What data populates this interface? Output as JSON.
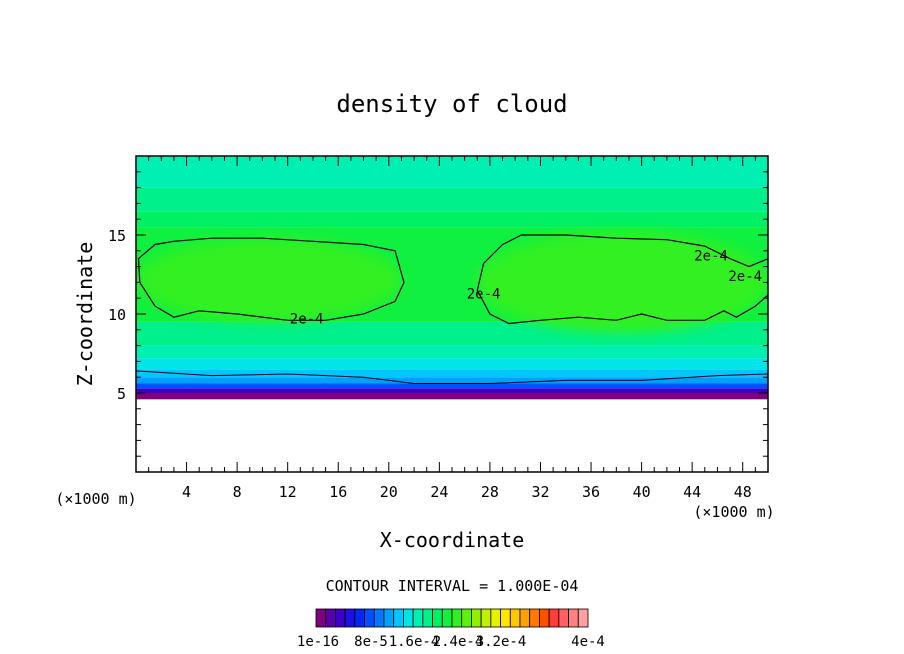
{
  "chart_data": {
    "type": "heatmap",
    "title": "density of cloud",
    "xlabel": "X-coordinate",
    "ylabel": "Z-coordinate",
    "x_unit": "(×1000 m)",
    "z_unit": "(×1000 m)",
    "xlim": [
      0,
      50
    ],
    "ylim": [
      0,
      20
    ],
    "x_ticks": [
      4,
      8,
      12,
      16,
      20,
      24,
      28,
      32,
      36,
      40,
      44,
      48
    ],
    "y_ticks": [
      5,
      10,
      15
    ],
    "contour_interval_text": "CONTOUR INTERVAL = 1.000E-04",
    "contour_label": "2e-4",
    "contour_level": 0.0002,
    "colorbar": {
      "labels": [
        "1e-16",
        "8e-5",
        "1.6e-4",
        "2.4e-4",
        "3.2e-4",
        "4e-4"
      ],
      "colors": [
        "#800080",
        "#5a00a8",
        "#3c00c8",
        "#1e10e0",
        "#0028f0",
        "#0050ff",
        "#0078ff",
        "#00a0ff",
        "#00c8ff",
        "#00e6e6",
        "#00f0b4",
        "#00f08c",
        "#00f064",
        "#10f040",
        "#30f020",
        "#60f010",
        "#90f000",
        "#c0f000",
        "#e6f000",
        "#ffe600",
        "#ffc800",
        "#ffa000",
        "#ff7800",
        "#ff5000",
        "#ff3c3c",
        "#ff6060",
        "#ff8080",
        "#ffa0a0"
      ]
    },
    "fill_bands": [
      {
        "z": [
          0,
          4.6
        ],
        "color": "#ffffff"
      },
      {
        "z": [
          4.6,
          5.0
        ],
        "color": "#800080"
      },
      {
        "z": [
          5.0,
          5.3
        ],
        "color": "#3c00c8"
      },
      {
        "z": [
          5.3,
          5.6
        ],
        "color": "#0050ff"
      },
      {
        "z": [
          5.6,
          6.0
        ],
        "color": "#00a0ff"
      },
      {
        "z": [
          6.0,
          6.5
        ],
        "color": "#00c8ff"
      },
      {
        "z": [
          6.5,
          7.2
        ],
        "color": "#00e6e6"
      },
      {
        "z": [
          7.2,
          8.0
        ],
        "color": "#00f0b4"
      },
      {
        "z": [
          8.0,
          9.5
        ],
        "color": "#00f08c"
      },
      {
        "z": [
          9.5,
          15.5
        ],
        "color": "#10f040"
      },
      {
        "z": [
          15.5,
          16.5
        ],
        "color": "#00f064"
      },
      {
        "z": [
          16.5,
          18.0
        ],
        "color": "#00f08c"
      },
      {
        "z": [
          18.0,
          20.0
        ],
        "color": "#00f0b4"
      }
    ],
    "cloud_cores": [
      {
        "x": [
          0,
          21
        ],
        "z": [
          9.5,
          14.8
        ],
        "color": "#30f020"
      },
      {
        "x": [
          27,
          50
        ],
        "z": [
          8.8,
          15.2
        ],
        "color": "#30f020"
      }
    ],
    "contour_2e4": [
      [
        [
          0.2,
          13.5
        ],
        [
          1.5,
          14.4
        ],
        [
          3,
          14.6
        ],
        [
          6,
          14.8
        ],
        [
          10,
          14.8
        ],
        [
          14,
          14.6
        ],
        [
          18,
          14.4
        ],
        [
          20.5,
          14.0
        ],
        [
          21.2,
          12.0
        ],
        [
          20.5,
          10.8
        ],
        [
          18,
          10.0
        ],
        [
          15,
          9.6
        ],
        [
          12,
          9.6
        ],
        [
          8,
          10.0
        ],
        [
          5,
          10.2
        ],
        [
          3,
          9.8
        ],
        [
          1.5,
          10.5
        ],
        [
          0.3,
          12.0
        ]
      ],
      [
        [
          29,
          14.4
        ],
        [
          30.5,
          15.0
        ],
        [
          34,
          15.0
        ],
        [
          38,
          14.8
        ],
        [
          42,
          14.7
        ],
        [
          45,
          14.3
        ],
        [
          47,
          13.5
        ],
        [
          48.5,
          13.0
        ],
        [
          50,
          13.5
        ]
      ],
      [
        [
          50,
          11.2
        ],
        [
          49,
          10.5
        ],
        [
          47.5,
          9.8
        ],
        [
          46.5,
          10.2
        ],
        [
          45,
          9.6
        ],
        [
          42,
          9.6
        ],
        [
          40,
          10.0
        ],
        [
          38,
          9.6
        ],
        [
          35,
          9.8
        ],
        [
          32,
          9.6
        ],
        [
          29.5,
          9.4
        ],
        [
          28,
          10.0
        ],
        [
          27,
          11.5
        ],
        [
          27.5,
          13.2
        ],
        [
          29,
          14.4
        ]
      ]
    ],
    "contour_low": [
      [
        0,
        6.4
      ],
      [
        6,
        6.1
      ],
      [
        12,
        6.2
      ],
      [
        18,
        6.0
      ],
      [
        22,
        5.6
      ],
      [
        28,
        5.6
      ],
      [
        34,
        5.8
      ],
      [
        40,
        5.8
      ],
      [
        46,
        6.1
      ],
      [
        50,
        6.2
      ]
    ],
    "contour_labels_at": [
      {
        "x": 13.5,
        "z": 9.7
      },
      {
        "x": 27.5,
        "z": 11.3
      },
      {
        "x": 45.5,
        "z": 13.7
      },
      {
        "x": 48.2,
        "z": 12.4
      }
    ]
  }
}
